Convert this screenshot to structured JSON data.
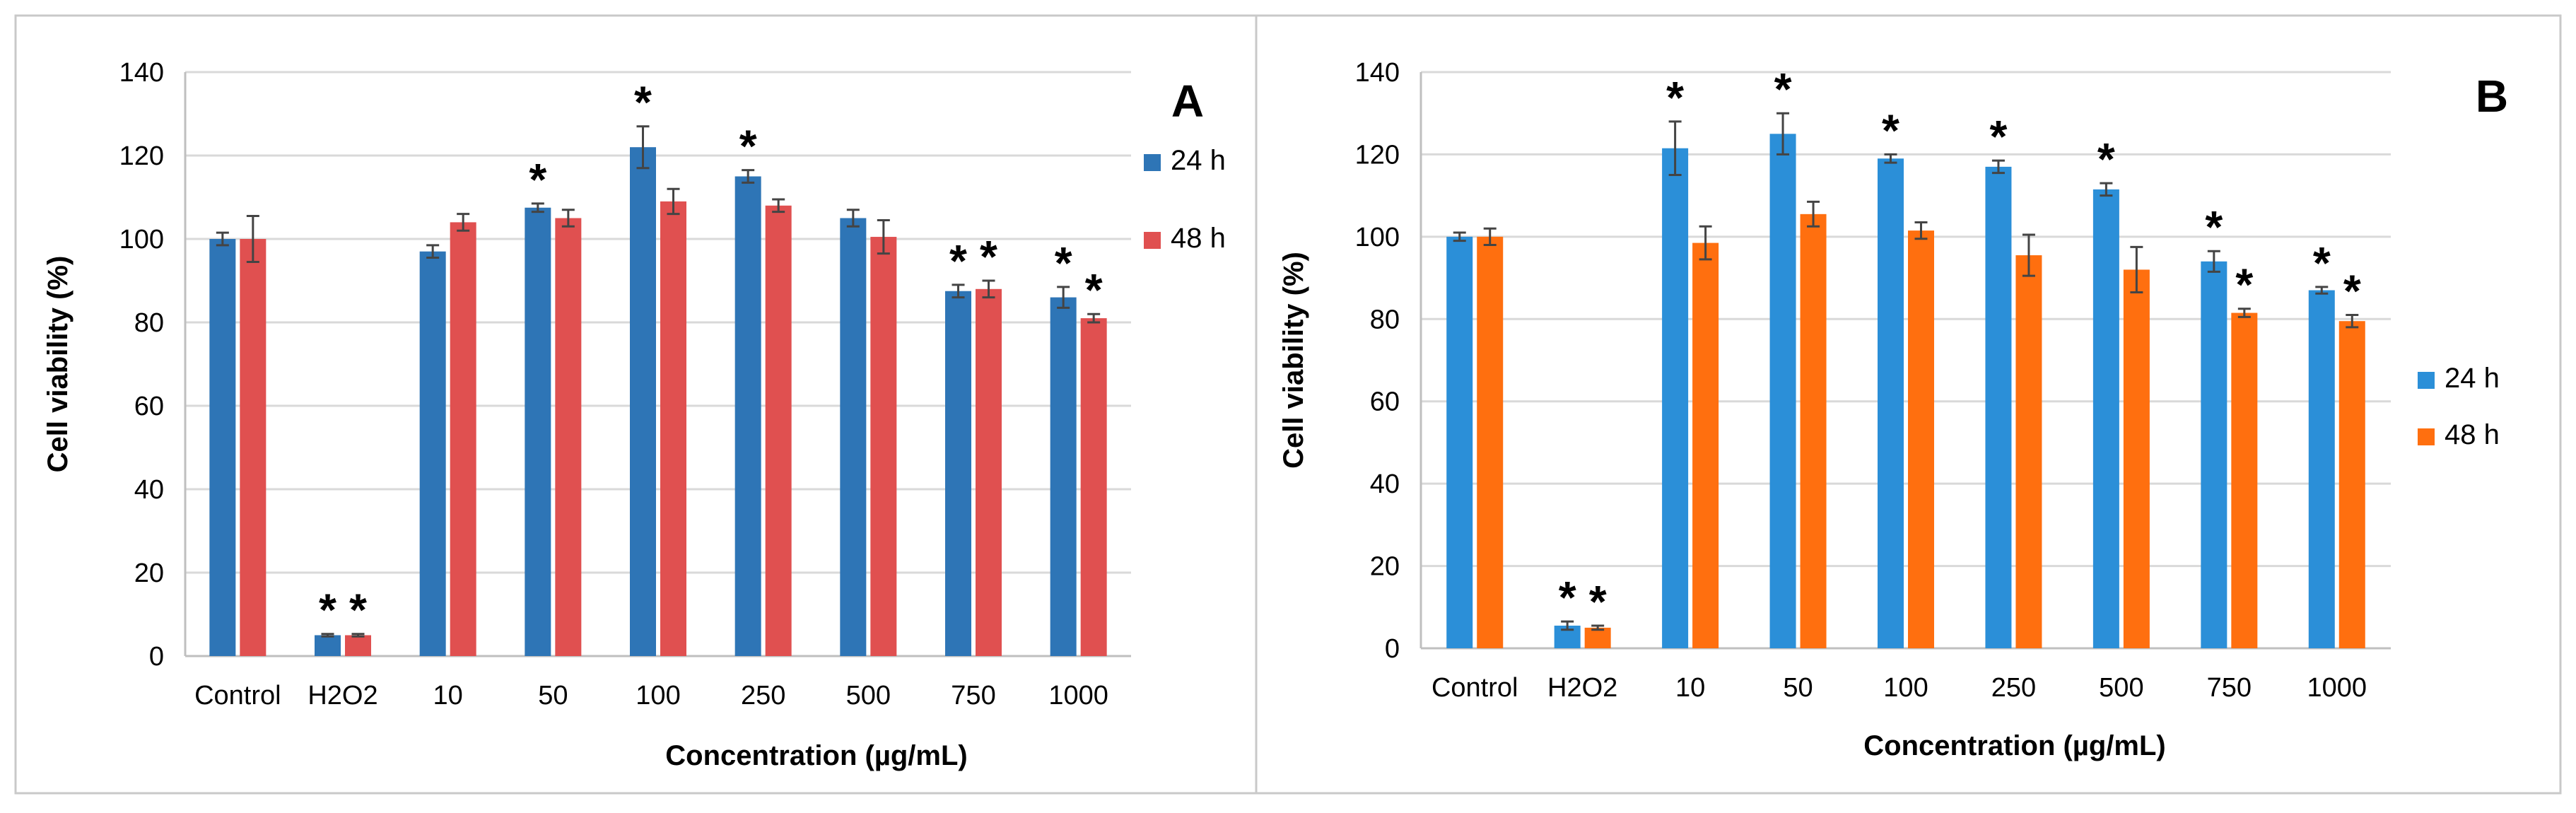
{
  "colors": {
    "panel_a_24h": "#2e75b6",
    "panel_a_48h": "#e05050",
    "panel_b_24h": "#2b8fd8",
    "panel_b_48h": "#ff6f0f"
  },
  "chart_data": [
    {
      "type": "bar",
      "panel_label": "A",
      "title": "",
      "xlabel": "Concentration (µg/mL)",
      "ylabel": "Cell viability (%)",
      "ylim": [
        0,
        140
      ],
      "ytick_step": 20,
      "yticks": [
        "0",
        "20",
        "40",
        "60",
        "80",
        "100",
        "120",
        "140"
      ],
      "grid": true,
      "legend_position": "right",
      "categories": [
        "Control",
        "H2O2",
        "10",
        "50",
        "100",
        "250",
        "500",
        "750",
        "1000"
      ],
      "series": [
        {
          "name": "24 h",
          "values": [
            100,
            5,
            97,
            107.5,
            122,
            115,
            105,
            87.5,
            86
          ],
          "errors": [
            1.5,
            0.3,
            1.5,
            1,
            5,
            1.5,
            2,
            1.5,
            2.5
          ],
          "significant": [
            false,
            true,
            false,
            true,
            true,
            true,
            false,
            true,
            true
          ]
        },
        {
          "name": "48 h",
          "values": [
            100,
            5,
            104,
            105,
            109,
            108,
            100.5,
            88,
            81
          ],
          "errors": [
            5.5,
            0.3,
            2,
            2,
            3,
            1.5,
            4,
            2,
            1
          ],
          "significant": [
            false,
            true,
            false,
            false,
            false,
            false,
            false,
            true,
            true
          ]
        }
      ],
      "annotation_symbol": "*"
    },
    {
      "type": "bar",
      "panel_label": "B",
      "title": "",
      "xlabel": "Concentration (µg/mL)",
      "ylabel": "Cell viability (%)",
      "ylim": [
        0,
        140
      ],
      "ytick_step": 20,
      "yticks": [
        "0",
        "20",
        "40",
        "60",
        "80",
        "100",
        "120",
        "140"
      ],
      "grid": true,
      "legend_position": "right",
      "categories": [
        "Control",
        "H2O2",
        "10",
        "50",
        "100",
        "250",
        "500",
        "750",
        "1000"
      ],
      "series": [
        {
          "name": "24 h",
          "values": [
            100,
            5.5,
            121.5,
            125,
            119,
            117,
            111.5,
            94,
            87
          ],
          "errors": [
            1,
            1,
            6.5,
            5,
            1,
            1.5,
            1.5,
            2.5,
            0.8
          ],
          "significant": [
            false,
            true,
            true,
            true,
            true,
            true,
            true,
            true,
            true
          ]
        },
        {
          "name": "48 h",
          "values": [
            100,
            5,
            98.5,
            105.5,
            101.5,
            95.5,
            92,
            81.5,
            79.5
          ],
          "errors": [
            2,
            0.5,
            4,
            3,
            2,
            5,
            5.5,
            1,
            1.5
          ],
          "significant": [
            false,
            true,
            false,
            false,
            false,
            false,
            false,
            true,
            true
          ]
        }
      ],
      "annotation_symbol": "*"
    }
  ]
}
